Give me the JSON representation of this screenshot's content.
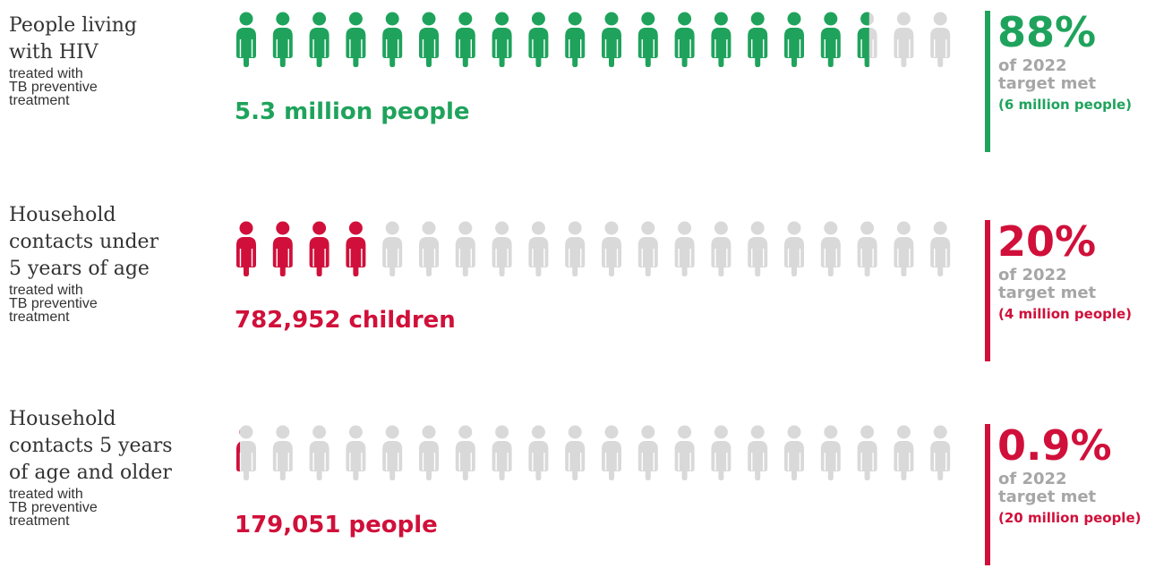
{
  "chart_data": {
    "type": "pictogram",
    "icons_per_row": 20,
    "colors": {
      "empty": "#d9d9d9",
      "green": "#1fa35c",
      "red": "#d0103a"
    },
    "rows": [
      {
        "label_main": "People living with HIV",
        "label_main_lines": [
          "People living",
          "with HIV"
        ],
        "label_sub_lines": [
          "treated with",
          "TB preventive",
          "treatment"
        ],
        "count_text": "5.3 million people",
        "percent_text": "88%",
        "percent": 88,
        "target_lines": [
          "of 2022",
          "target met"
        ],
        "target_note": "(6 million people)",
        "color": "#1fa35c"
      },
      {
        "label_main": "Household contacts under 5 years of age",
        "label_main_lines": [
          "Household",
          "contacts under",
          "5 years of age"
        ],
        "label_sub_lines": [
          "treated with",
          "TB preventive",
          "treatment"
        ],
        "count_text": "782,952 children",
        "percent_text": "20%",
        "percent": 20,
        "target_lines": [
          "of 2022",
          "target met"
        ],
        "target_note": "(4 million people)",
        "color": "#d0103a"
      },
      {
        "label_main": "Household contacts 5 years of age and older",
        "label_main_lines": [
          "Household",
          "contacts 5 years",
          "of age and older"
        ],
        "label_sub_lines": [
          "treated with",
          "TB preventive",
          "treatment"
        ],
        "count_text": "179,051  people",
        "percent_text": "0.9%",
        "percent": 0.9,
        "target_lines": [
          "of 2022",
          "target met"
        ],
        "target_note": "(20 million people)",
        "color": "#d0103a"
      }
    ]
  }
}
